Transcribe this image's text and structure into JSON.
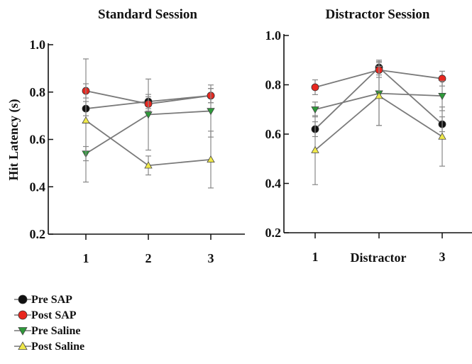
{
  "legend": [
    {
      "name": "Pre SAP",
      "marker": "circle",
      "color": "#111111"
    },
    {
      "name": "Post SAP",
      "marker": "circle",
      "color": "#e8271f"
    },
    {
      "name": "Pre Saline",
      "marker": "triangle-down",
      "color": "#2e9a3a"
    },
    {
      "name": "Post Saline",
      "marker": "triangle-up",
      "color": "#efe84a"
    }
  ],
  "chart_data": [
    {
      "type": "line",
      "title": "Standard Session",
      "ylabel": "Hit Latency (s)",
      "xlabel": "",
      "ylim": [
        0.2,
        1.0
      ],
      "yticks": [
        "0.2",
        "0.4",
        "0.6",
        "0.8",
        "1.0"
      ],
      "x": [
        1,
        2,
        3
      ],
      "xticks": [
        "1",
        "2",
        "3"
      ],
      "series": [
        {
          "name": "Pre SAP",
          "values": [
            0.73,
            0.76,
            0.785
          ],
          "err": [
            0.03,
            0.03,
            0.03
          ]
        },
        {
          "name": "Post SAP",
          "values": [
            0.805,
            0.75,
            0.785
          ],
          "err": [
            0.03,
            0.03,
            0.03
          ]
        },
        {
          "name": "Pre Saline",
          "values": [
            0.54,
            0.705,
            0.72
          ],
          "err": [
            0.03,
            0.15,
            0.11
          ]
        },
        {
          "name": "Post Saline",
          "values": [
            0.68,
            0.49,
            0.515
          ],
          "err": [
            0.26,
            0.04,
            0.12
          ]
        }
      ]
    },
    {
      "type": "line",
      "title": "Distractor Session",
      "ylabel": "",
      "xlabel": "Distractor",
      "ylim": [
        0.2,
        1.0
      ],
      "yticks": [
        "0.2",
        "0.4",
        "0.6",
        "0.8",
        "1.0"
      ],
      "x": [
        1,
        2,
        3
      ],
      "xticks": [
        "1",
        "",
        "3"
      ],
      "series": [
        {
          "name": "Pre SAP",
          "values": [
            0.62,
            0.87,
            0.64
          ],
          "err": [
            0.03,
            0.03,
            0.03
          ]
        },
        {
          "name": "Post SAP",
          "values": [
            0.79,
            0.86,
            0.825
          ],
          "err": [
            0.03,
            0.03,
            0.03
          ]
        },
        {
          "name": "Pre Saline",
          "values": [
            0.7,
            0.765,
            0.755
          ],
          "err": [
            0.03,
            0.13,
            0.06
          ]
        },
        {
          "name": "Post Saline",
          "values": [
            0.535,
            0.755,
            0.59
          ],
          "err": [
            0.14,
            0.12,
            0.12
          ]
        }
      ]
    }
  ]
}
